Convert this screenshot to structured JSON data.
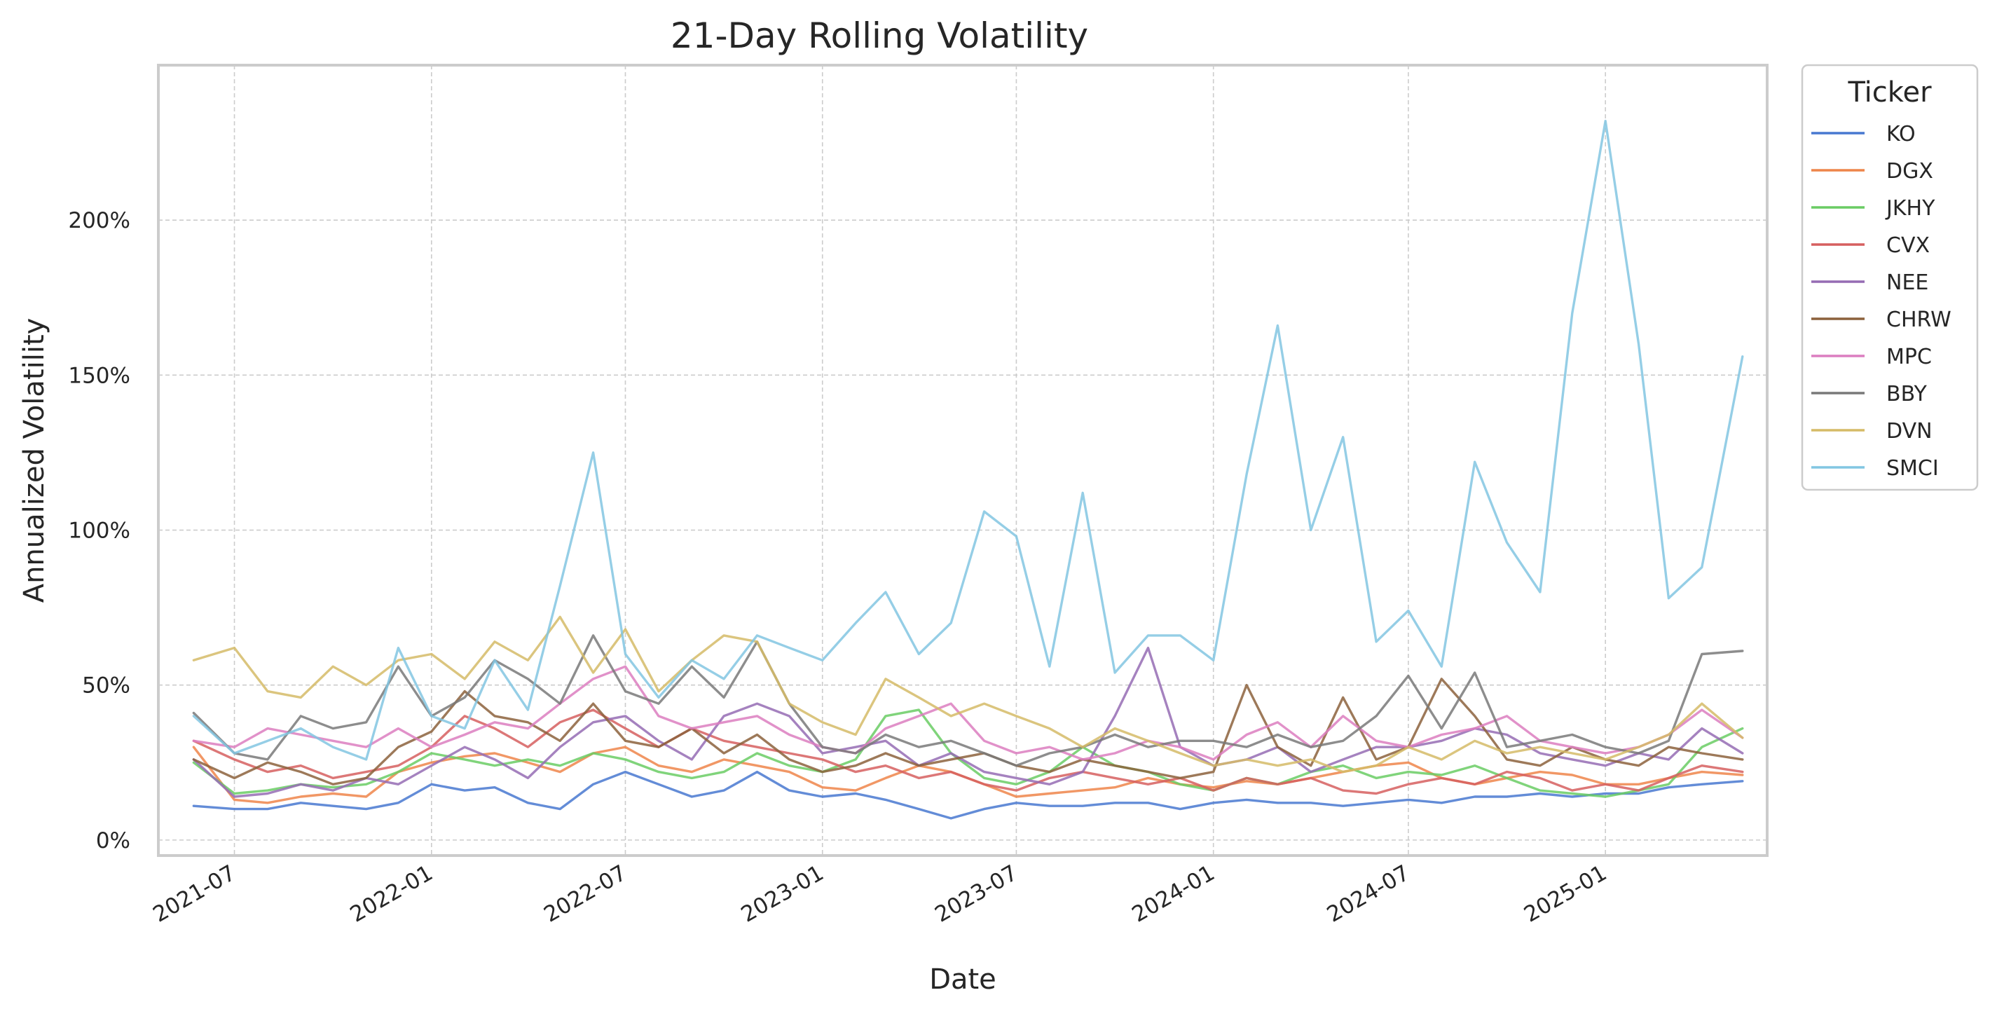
{
  "chart_data": {
    "type": "line",
    "title": "21-Day Rolling Volatility",
    "xlabel": "Date",
    "ylabel": "Annualized Volatility",
    "x_ticks": [
      "2021-07",
      "2022-01",
      "2022-07",
      "2023-01",
      "2023-07",
      "2024-01",
      "2024-07",
      "2025-01"
    ],
    "y_ticks": [
      "0%",
      "50%",
      "100%",
      "150%",
      "200%"
    ],
    "xlim": [
      "2021-04-21",
      "2025-06-01"
    ],
    "ylim": [
      -0.05,
      2.5
    ],
    "grid": true,
    "legend": {
      "title": "Ticker",
      "placement": "outside-right-top"
    },
    "x": [
      "2021-05-24",
      "2021-07-01",
      "2021-08-01",
      "2021-09-01",
      "2021-10-01",
      "2021-11-01",
      "2021-12-01",
      "2022-01-01",
      "2022-02-01",
      "2022-03-01",
      "2022-04-01",
      "2022-05-01",
      "2022-06-01",
      "2022-07-01",
      "2022-08-01",
      "2022-09-01",
      "2022-10-01",
      "2022-11-01",
      "2022-12-01",
      "2023-01-01",
      "2023-02-01",
      "2023-03-01",
      "2023-04-01",
      "2023-05-01",
      "2023-06-01",
      "2023-07-01",
      "2023-08-01",
      "2023-09-01",
      "2023-10-01",
      "2023-11-01",
      "2023-12-01",
      "2024-01-01",
      "2024-02-01",
      "2024-03-01",
      "2024-04-01",
      "2024-05-01",
      "2024-06-01",
      "2024-07-01",
      "2024-08-01",
      "2024-09-01",
      "2024-10-01",
      "2024-11-01",
      "2024-12-01",
      "2025-01-01",
      "2025-02-01",
      "2025-03-01",
      "2025-04-01",
      "2025-05-09"
    ],
    "series": [
      {
        "name": "KO",
        "color": "#4878d0",
        "values": [
          0.11,
          0.1,
          0.1,
          0.12,
          0.11,
          0.1,
          0.12,
          0.18,
          0.16,
          0.17,
          0.12,
          0.1,
          0.18,
          0.22,
          0.18,
          0.14,
          0.16,
          0.22,
          0.16,
          0.14,
          0.15,
          0.13,
          0.1,
          0.07,
          0.1,
          0.12,
          0.11,
          0.11,
          0.12,
          0.12,
          0.1,
          0.12,
          0.13,
          0.12,
          0.12,
          0.11,
          0.12,
          0.13,
          0.12,
          0.14,
          0.14,
          0.15,
          0.14,
          0.15,
          0.15,
          0.17,
          0.18,
          0.19
        ]
      },
      {
        "name": "DGX",
        "color": "#ee854a",
        "values": [
          0.3,
          0.13,
          0.12,
          0.14,
          0.15,
          0.14,
          0.22,
          0.25,
          0.27,
          0.28,
          0.25,
          0.22,
          0.28,
          0.3,
          0.24,
          0.22,
          0.26,
          0.24,
          0.22,
          0.17,
          0.16,
          0.2,
          0.24,
          0.22,
          0.18,
          0.14,
          0.15,
          0.16,
          0.17,
          0.2,
          0.18,
          0.17,
          0.19,
          0.18,
          0.2,
          0.22,
          0.24,
          0.25,
          0.2,
          0.18,
          0.2,
          0.22,
          0.21,
          0.18,
          0.18,
          0.2,
          0.22,
          0.21
        ]
      },
      {
        "name": "JKHY",
        "color": "#6acc64",
        "values": [
          0.25,
          0.15,
          0.16,
          0.18,
          0.17,
          0.18,
          0.22,
          0.28,
          0.26,
          0.24,
          0.26,
          0.24,
          0.28,
          0.26,
          0.22,
          0.2,
          0.22,
          0.28,
          0.24,
          0.22,
          0.26,
          0.4,
          0.42,
          0.28,
          0.2,
          0.18,
          0.22,
          0.3,
          0.24,
          0.22,
          0.18,
          0.16,
          0.2,
          0.18,
          0.22,
          0.24,
          0.2,
          0.22,
          0.21,
          0.24,
          0.2,
          0.16,
          0.15,
          0.14,
          0.16,
          0.18,
          0.3,
          0.36
        ]
      },
      {
        "name": "CVX",
        "color": "#d65f5f",
        "values": [
          0.32,
          0.26,
          0.22,
          0.24,
          0.2,
          0.22,
          0.24,
          0.3,
          0.4,
          0.36,
          0.3,
          0.38,
          0.42,
          0.36,
          0.3,
          0.36,
          0.32,
          0.3,
          0.28,
          0.26,
          0.22,
          0.24,
          0.2,
          0.22,
          0.18,
          0.16,
          0.2,
          0.22,
          0.2,
          0.18,
          0.2,
          0.16,
          0.2,
          0.18,
          0.2,
          0.16,
          0.15,
          0.18,
          0.2,
          0.18,
          0.22,
          0.2,
          0.16,
          0.18,
          0.16,
          0.2,
          0.24,
          0.22
        ]
      },
      {
        "name": "NEE",
        "color": "#956cb4",
        "values": [
          0.26,
          0.14,
          0.15,
          0.18,
          0.16,
          0.2,
          0.18,
          0.24,
          0.3,
          0.26,
          0.2,
          0.3,
          0.38,
          0.4,
          0.32,
          0.26,
          0.4,
          0.44,
          0.4,
          0.28,
          0.3,
          0.32,
          0.24,
          0.28,
          0.22,
          0.2,
          0.18,
          0.22,
          0.4,
          0.62,
          0.3,
          0.24,
          0.26,
          0.3,
          0.22,
          0.26,
          0.3,
          0.3,
          0.32,
          0.36,
          0.34,
          0.28,
          0.26,
          0.24,
          0.28,
          0.26,
          0.36,
          0.28
        ]
      },
      {
        "name": "CHRW",
        "color": "#8c613c",
        "values": [
          0.26,
          0.2,
          0.25,
          0.22,
          0.18,
          0.2,
          0.3,
          0.35,
          0.48,
          0.4,
          0.38,
          0.32,
          0.44,
          0.32,
          0.3,
          0.36,
          0.28,
          0.34,
          0.26,
          0.22,
          0.24,
          0.28,
          0.24,
          0.26,
          0.28,
          0.24,
          0.22,
          0.26,
          0.24,
          0.22,
          0.2,
          0.22,
          0.5,
          0.3,
          0.24,
          0.46,
          0.26,
          0.3,
          0.52,
          0.4,
          0.26,
          0.24,
          0.3,
          0.26,
          0.24,
          0.3,
          0.28,
          0.26
        ]
      },
      {
        "name": "MPC",
        "color": "#dc7ec0",
        "values": [
          0.32,
          0.3,
          0.36,
          0.34,
          0.32,
          0.3,
          0.36,
          0.3,
          0.34,
          0.38,
          0.36,
          0.44,
          0.52,
          0.56,
          0.4,
          0.36,
          0.38,
          0.4,
          0.34,
          0.3,
          0.28,
          0.36,
          0.4,
          0.44,
          0.32,
          0.28,
          0.3,
          0.26,
          0.28,
          0.32,
          0.3,
          0.26,
          0.34,
          0.38,
          0.3,
          0.4,
          0.32,
          0.3,
          0.34,
          0.36,
          0.4,
          0.32,
          0.3,
          0.28,
          0.3,
          0.34,
          0.42,
          0.33
        ]
      },
      {
        "name": "BBY",
        "color": "#797979",
        "values": [
          0.41,
          0.28,
          0.26,
          0.4,
          0.36,
          0.38,
          0.56,
          0.4,
          0.46,
          0.58,
          0.52,
          0.44,
          0.66,
          0.48,
          0.44,
          0.56,
          0.46,
          0.64,
          0.44,
          0.3,
          0.28,
          0.34,
          0.3,
          0.32,
          0.28,
          0.24,
          0.28,
          0.3,
          0.34,
          0.3,
          0.32,
          0.32,
          0.3,
          0.34,
          0.3,
          0.32,
          0.4,
          0.53,
          0.36,
          0.54,
          0.3,
          0.32,
          0.34,
          0.3,
          0.28,
          0.32,
          0.6,
          0.61
        ]
      },
      {
        "name": "DVN",
        "color": "#d5bb67",
        "values": [
          0.58,
          0.62,
          0.48,
          0.46,
          0.56,
          0.5,
          0.58,
          0.6,
          0.52,
          0.64,
          0.58,
          0.72,
          0.54,
          0.68,
          0.48,
          0.58,
          0.66,
          0.64,
          0.44,
          0.38,
          0.34,
          0.52,
          0.46,
          0.4,
          0.44,
          0.4,
          0.36,
          0.3,
          0.36,
          0.32,
          0.28,
          0.24,
          0.26,
          0.24,
          0.26,
          0.22,
          0.24,
          0.3,
          0.26,
          0.32,
          0.28,
          0.3,
          0.28,
          0.26,
          0.3,
          0.34,
          0.44,
          0.33
        ]
      },
      {
        "name": "SMCI",
        "color": "#82c6e2",
        "values": [
          0.4,
          0.28,
          0.32,
          0.36,
          0.3,
          0.26,
          0.62,
          0.4,
          0.36,
          0.58,
          0.42,
          0.82,
          1.25,
          0.6,
          0.46,
          0.58,
          0.52,
          0.66,
          0.62,
          0.58,
          0.7,
          0.8,
          0.6,
          0.7,
          1.06,
          0.98,
          0.56,
          1.12,
          0.54,
          0.66,
          0.66,
          0.58,
          1.18,
          1.66,
          1.0,
          1.3,
          0.64,
          0.74,
          0.56,
          1.22,
          0.96,
          0.8,
          1.7,
          2.32,
          1.6,
          0.78,
          0.88,
          1.56
        ]
      }
    ]
  }
}
